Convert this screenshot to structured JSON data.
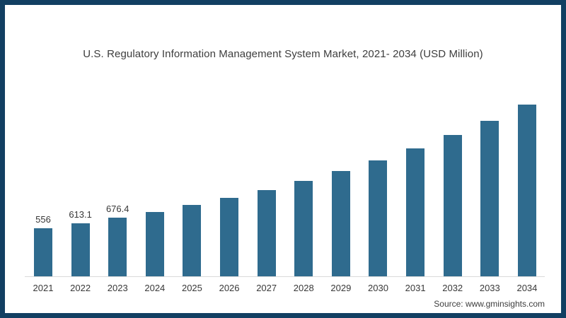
{
  "chart_data": {
    "type": "bar",
    "title": "U.S. Regulatory Information Management System Market, 2021- 2034 (USD Million)",
    "categories": [
      "2021",
      "2022",
      "2023",
      "2024",
      "2025",
      "2026",
      "2027",
      "2028",
      "2029",
      "2030",
      "2031",
      "2032",
      "2033",
      "2034"
    ],
    "values": [
      556,
      613.1,
      676.4,
      746,
      823,
      908,
      1001,
      1104,
      1218,
      1343,
      1481,
      1634,
      1802,
      1988
    ],
    "data_labels": [
      "556",
      "613.1",
      "676.4",
      "",
      "",
      "",
      "",
      "",
      "",
      "",
      "",
      "",
      "",
      ""
    ],
    "xlabel": "",
    "ylabel": "",
    "ylim": [
      0,
      2100
    ],
    "grid": false,
    "legend": "none",
    "bar_color": "#2f6b8e",
    "axis_line_color": "#d9d9d9",
    "frame_border_color": "#123f62",
    "title_color": "#3d3d3d",
    "label_color": "#383838"
  },
  "source": {
    "label": "Source: www.gminsights.com"
  }
}
